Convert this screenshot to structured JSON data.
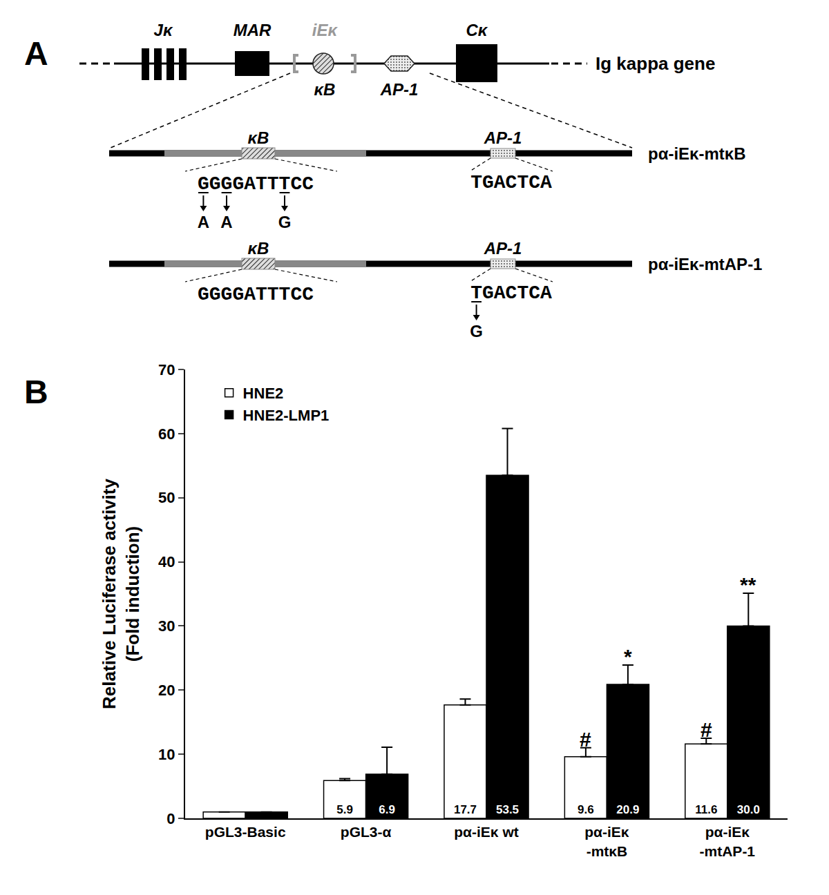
{
  "diagram": {
    "panel_label": "A",
    "gene": {
      "label": "Ig kappa gene",
      "j": "Jκ",
      "mar": "MAR",
      "enhancer": "iEκ",
      "kb": "κB",
      "ap1": "AP-1",
      "c": "Cκ"
    },
    "constructs": [
      {
        "name": "pα-iEκ-mtκB",
        "kb_site": {
          "label": "κB",
          "sequence": "GGGGATTTCC",
          "mutations": [
            {
              "position": 0,
              "to": "A"
            },
            {
              "position": 2,
              "to": "A"
            },
            {
              "position": 7,
              "to": "G"
            }
          ]
        },
        "ap1_site": {
          "label": "AP-1",
          "sequence": "TGACTCA",
          "mutations": []
        }
      },
      {
        "name": "pα-iEκ-mtAP-1",
        "kb_site": {
          "label": "κB",
          "sequence": "GGGGATTTCC",
          "mutations": []
        },
        "ap1_site": {
          "label": "AP-1",
          "sequence": "TGACTCA",
          "mutations": [
            {
              "position": 0,
              "to": "G"
            }
          ]
        }
      }
    ]
  },
  "chart_data": {
    "type": "bar",
    "panel_label": "B",
    "ylabel": "Relative Luciferase activity\n(Fold induction)",
    "categories": [
      "pGL3-Basic",
      "pGL3-α",
      "pα-iEκ wt",
      "pα-iEκ\n-mtκB",
      "pα-iEκ\n-mtAP-1"
    ],
    "series": [
      {
        "name": "HNE2",
        "color": "#ffffff",
        "values": [
          1,
          5.9,
          17.7,
          9.6,
          11.6
        ],
        "errors": [
          0,
          0.3,
          0.9,
          1.4,
          0.9
        ],
        "value_labels": [
          null,
          "5.9",
          "17.7",
          "9.6",
          "11.6"
        ]
      },
      {
        "name": "HNE2-LMP1",
        "color": "#000000",
        "values": [
          1,
          6.9,
          53.5,
          20.9,
          30.0
        ],
        "errors": [
          0,
          4.2,
          7.3,
          3.0,
          5.1
        ],
        "value_labels": [
          null,
          "6.9",
          "53.5",
          "20.9",
          "30.0"
        ]
      }
    ],
    "annotations": [
      {
        "category": 3,
        "series": "HNE2",
        "text": "#"
      },
      {
        "category": 4,
        "series": "HNE2",
        "text": "#"
      },
      {
        "category": 3,
        "series": "HNE2-LMP1",
        "text": "*"
      },
      {
        "category": 4,
        "series": "HNE2-LMP1",
        "text": "**"
      }
    ],
    "ylim": [
      0,
      70
    ],
    "yticks": [
      0,
      10,
      20,
      30,
      40,
      50,
      60,
      70
    ],
    "grid": false,
    "legend": "top-left",
    "data_labels": true
  }
}
